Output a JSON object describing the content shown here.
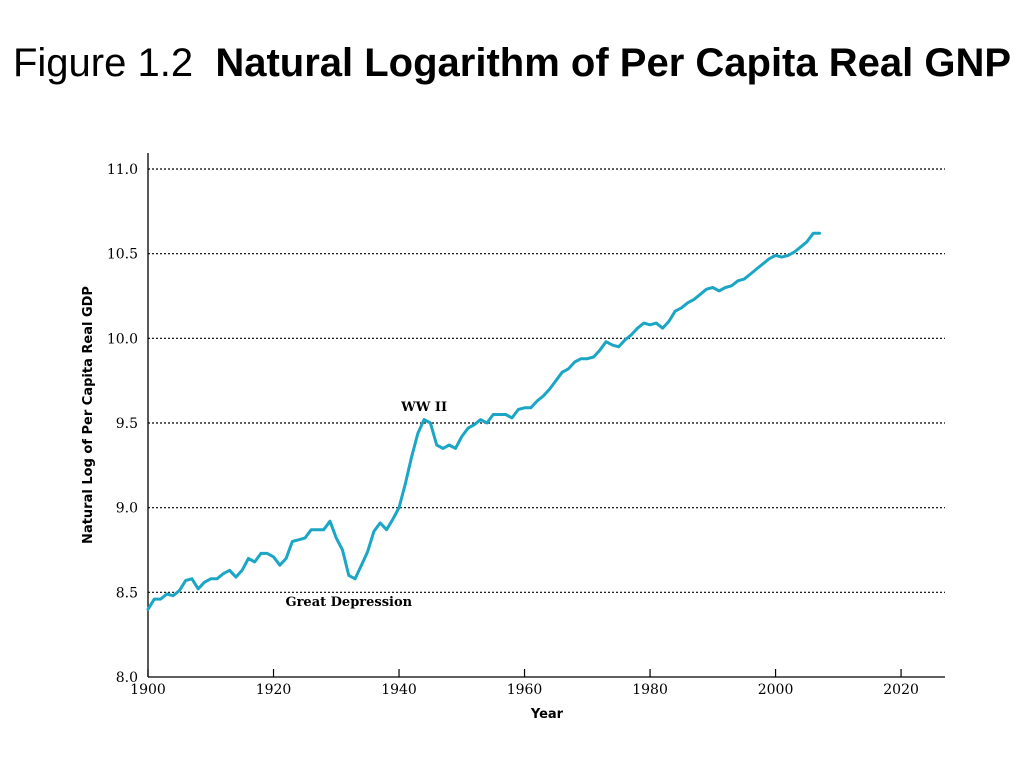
{
  "slide": {
    "title_prefix": "Figure 1.2",
    "title_main": "Natural Logarithm of Per Capita Real GNP"
  },
  "chart_data": {
    "type": "line",
    "xlabel": "Year",
    "ylabel": "Natural Log of Per Capita Real GDP",
    "xlim": [
      1900,
      2027
    ],
    "ylim": [
      8.0,
      11.0
    ],
    "x_ticks": [
      1900,
      1920,
      1940,
      1960,
      1980,
      2000,
      2020
    ],
    "y_ticks": [
      8.0,
      8.5,
      9.0,
      9.5,
      10.0,
      10.5,
      11.0
    ],
    "y_tick_labels": [
      "8.0",
      "8.5",
      "9.0",
      "9.5",
      "10.0",
      "10.5",
      "11.0"
    ],
    "grid": "horizontal dotted",
    "line_color": "#1aa6c4",
    "annotations": [
      {
        "text": "WW II",
        "x": 1944,
        "y": 9.6
      },
      {
        "text": "Great Depression",
        "x": 1932,
        "y": 8.45
      }
    ],
    "series": [
      {
        "x": [
          1900,
          1901,
          1902,
          1903,
          1904,
          1905,
          1906,
          1907,
          1908,
          1909,
          1910,
          1911,
          1912,
          1913,
          1914,
          1915,
          1916,
          1917,
          1918,
          1919,
          1920,
          1921,
          1922,
          1923,
          1924,
          1925,
          1926,
          1927,
          1928,
          1929,
          1930,
          1931,
          1932,
          1933,
          1934,
          1935,
          1936,
          1937,
          1938,
          1939,
          1940,
          1941,
          1942,
          1943,
          1944,
          1945,
          1946,
          1947,
          1948,
          1949,
          1950,
          1951,
          1952,
          1953,
          1954,
          1955,
          1956,
          1957,
          1958,
          1959,
          1960,
          1961,
          1962,
          1963,
          1964,
          1965,
          1966,
          1967,
          1968,
          1969,
          1970,
          1971,
          1972,
          1973,
          1974,
          1975,
          1976,
          1977,
          1978,
          1979,
          1980,
          1981,
          1982,
          1983,
          1984,
          1985,
          1986,
          1987,
          1988,
          1989,
          1990,
          1991,
          1992,
          1993,
          1994,
          1995,
          1996,
          1997,
          1998,
          1999,
          2000,
          2001,
          2002,
          2003,
          2004,
          2005,
          2006,
          2007
        ],
        "values": [
          8.4,
          8.46,
          8.46,
          8.49,
          8.48,
          8.51,
          8.57,
          8.58,
          8.52,
          8.56,
          8.58,
          8.58,
          8.61,
          8.63,
          8.59,
          8.63,
          8.7,
          8.68,
          8.73,
          8.73,
          8.71,
          8.66,
          8.7,
          8.8,
          8.81,
          8.82,
          8.87,
          8.87,
          8.87,
          8.92,
          8.82,
          8.75,
          8.6,
          8.58,
          8.66,
          8.74,
          8.86,
          8.91,
          8.87,
          8.93,
          9.0,
          9.14,
          9.3,
          9.44,
          9.52,
          9.5,
          9.37,
          9.35,
          9.37,
          9.35,
          9.42,
          9.47,
          9.49,
          9.52,
          9.5,
          9.55,
          9.55,
          9.55,
          9.53,
          9.58,
          9.59,
          9.59,
          9.63,
          9.66,
          9.7,
          9.75,
          9.8,
          9.82,
          9.86,
          9.88,
          9.88,
          9.89,
          9.93,
          9.98,
          9.96,
          9.95,
          9.99,
          10.02,
          10.06,
          10.09,
          10.08,
          10.09,
          10.06,
          10.1,
          10.16,
          10.18,
          10.21,
          10.23,
          10.26,
          10.29,
          10.3,
          10.28,
          10.3,
          10.31,
          10.34,
          10.35,
          10.38,
          10.41,
          10.44,
          10.47,
          10.49,
          10.48,
          10.49,
          10.51,
          10.54,
          10.57,
          10.62,
          10.62
        ]
      }
    ]
  }
}
